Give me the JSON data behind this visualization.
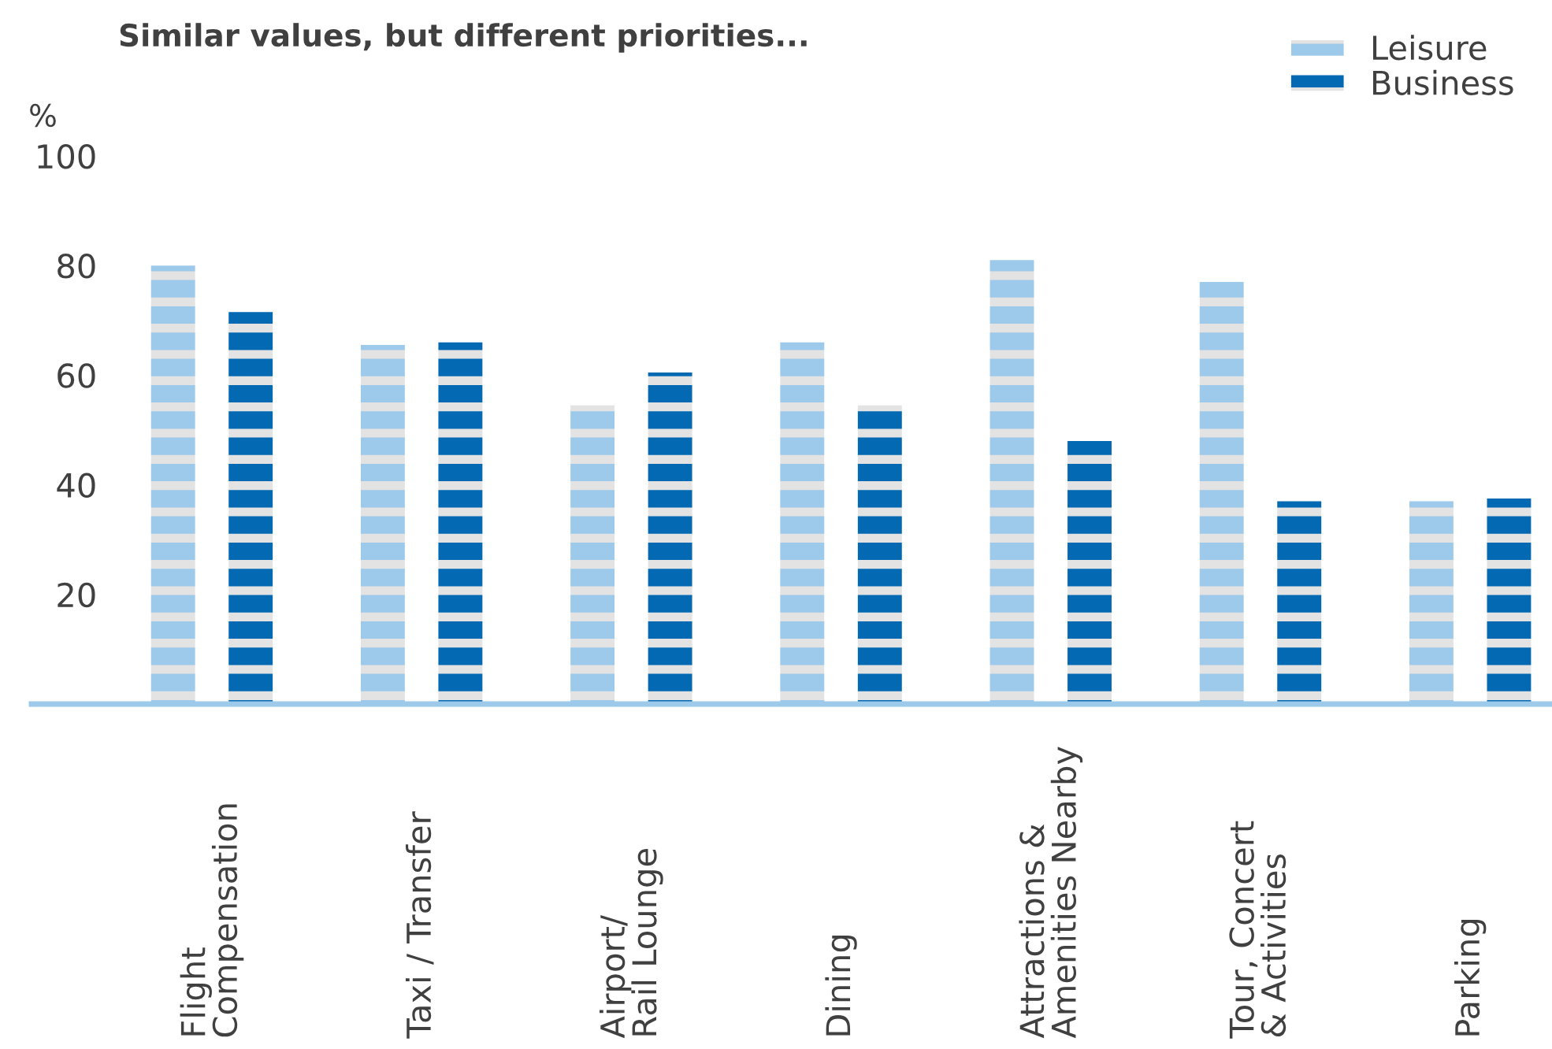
{
  "chart_data": {
    "type": "bar",
    "title": "Similar values, but different priorities...",
    "ylabel": "%",
    "categories": [
      "Flight\nCompensation",
      "Taxi / Transfer",
      "Airport/\nRail Lounge",
      "Dining",
      "Attractions &\nAmenities Nearby",
      "Tour, Concert\n& Activities",
      "Parking"
    ],
    "series": [
      {
        "name": "Leisure",
        "color": "#9dc9ea",
        "values": [
          80,
          65.5,
          54.5,
          66,
          81,
          77,
          37
        ]
      },
      {
        "name": "Business",
        "color": "#0369b3",
        "values": [
          71.5,
          66,
          60.5,
          54.5,
          48,
          37,
          37.5
        ]
      }
    ],
    "ylim": [
      0,
      100
    ],
    "yticks": [
      20,
      40,
      60,
      80,
      100
    ],
    "grid": false,
    "legend": "top right"
  }
}
